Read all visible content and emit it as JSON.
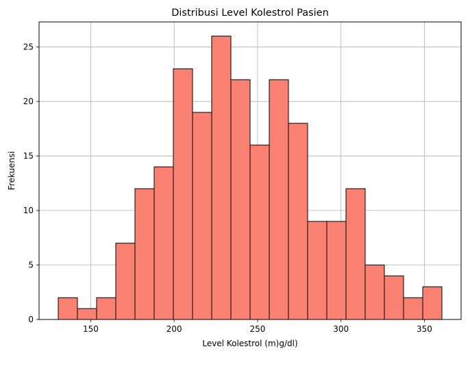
{
  "chart_data": {
    "type": "bar",
    "title": "Distribusi Level Kolestrol Pasien",
    "xlabel": "Level Kolestrol (m)g/dl)",
    "ylabel": "Frekuensi",
    "bin_edges": [
      130.5,
      142.0,
      153.5,
      165.0,
      176.5,
      188.0,
      199.5,
      211.0,
      222.5,
      234.0,
      245.5,
      257.0,
      268.5,
      280.0,
      291.5,
      303.0,
      314.5,
      326.0,
      337.5,
      349.0,
      360.5
    ],
    "values": [
      2,
      1,
      2,
      7,
      12,
      14,
      23,
      19,
      26,
      22,
      16,
      22,
      18,
      9,
      9,
      12,
      5,
      4,
      2,
      3
    ],
    "xlim": [
      119,
      372
    ],
    "ylim": [
      0,
      27.3
    ],
    "xticks": [
      150,
      200,
      250,
      300,
      350
    ],
    "yticks": [
      0,
      5,
      10,
      15,
      20,
      25
    ],
    "grid": true,
    "bar_color": "#fa8072",
    "edge_color": "#000000",
    "grid_color": "#b0b0b0"
  }
}
